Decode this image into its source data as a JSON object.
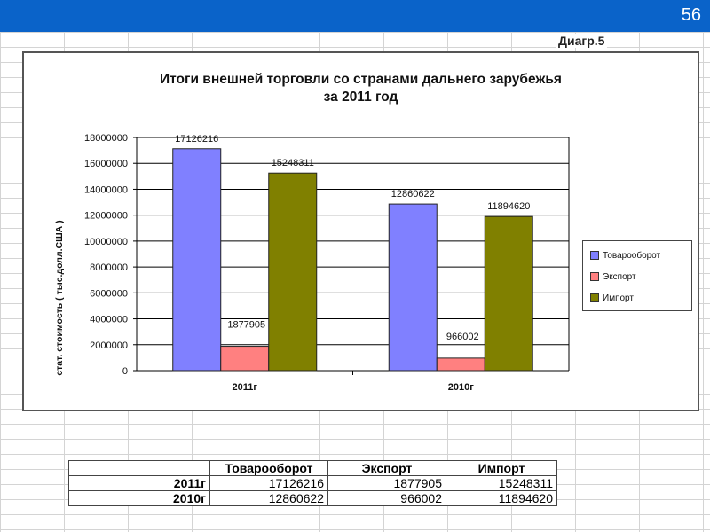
{
  "slide_number": "56",
  "diagram_label": "Диагр.5",
  "colors": {
    "top_bar": "#0a63c9",
    "series_turnover": "#8080ff",
    "series_export": "#ff8080",
    "series_import": "#808000"
  },
  "chart_data": {
    "type": "bar",
    "title_line1": "Итоги внешней торговли со странами дальнего зарубежья",
    "title_line2": "за 2011 год",
    "ylabel": "стат. стоимость ( тыс.долл.США )",
    "xlabel": "",
    "ylim": [
      0,
      18000000
    ],
    "yticks": [
      "18000000",
      "16000000",
      "14000000",
      "12000000",
      "10000000",
      "8000000",
      "6000000",
      "4000000",
      "2000000",
      "0"
    ],
    "categories": [
      "2011г",
      "2010г"
    ],
    "series": [
      {
        "name": "Товарооборот",
        "values": [
          17126216,
          12860622
        ],
        "color": "#8080ff"
      },
      {
        "name": "Экспорт",
        "values": [
          1877905,
          966002
        ],
        "color": "#ff8080"
      },
      {
        "name": "Импорт",
        "values": [
          15248311,
          11894620
        ],
        "color": "#808000"
      }
    ],
    "legend_position": "right",
    "grid": true
  },
  "table": {
    "headers": [
      "",
      "Товарооборот",
      "Экспорт",
      "Импорт"
    ],
    "rows": [
      [
        "2011г",
        "17126216",
        "1877905",
        "15248311"
      ],
      [
        "2010г",
        "12860622",
        "966002",
        "11894620"
      ]
    ]
  }
}
